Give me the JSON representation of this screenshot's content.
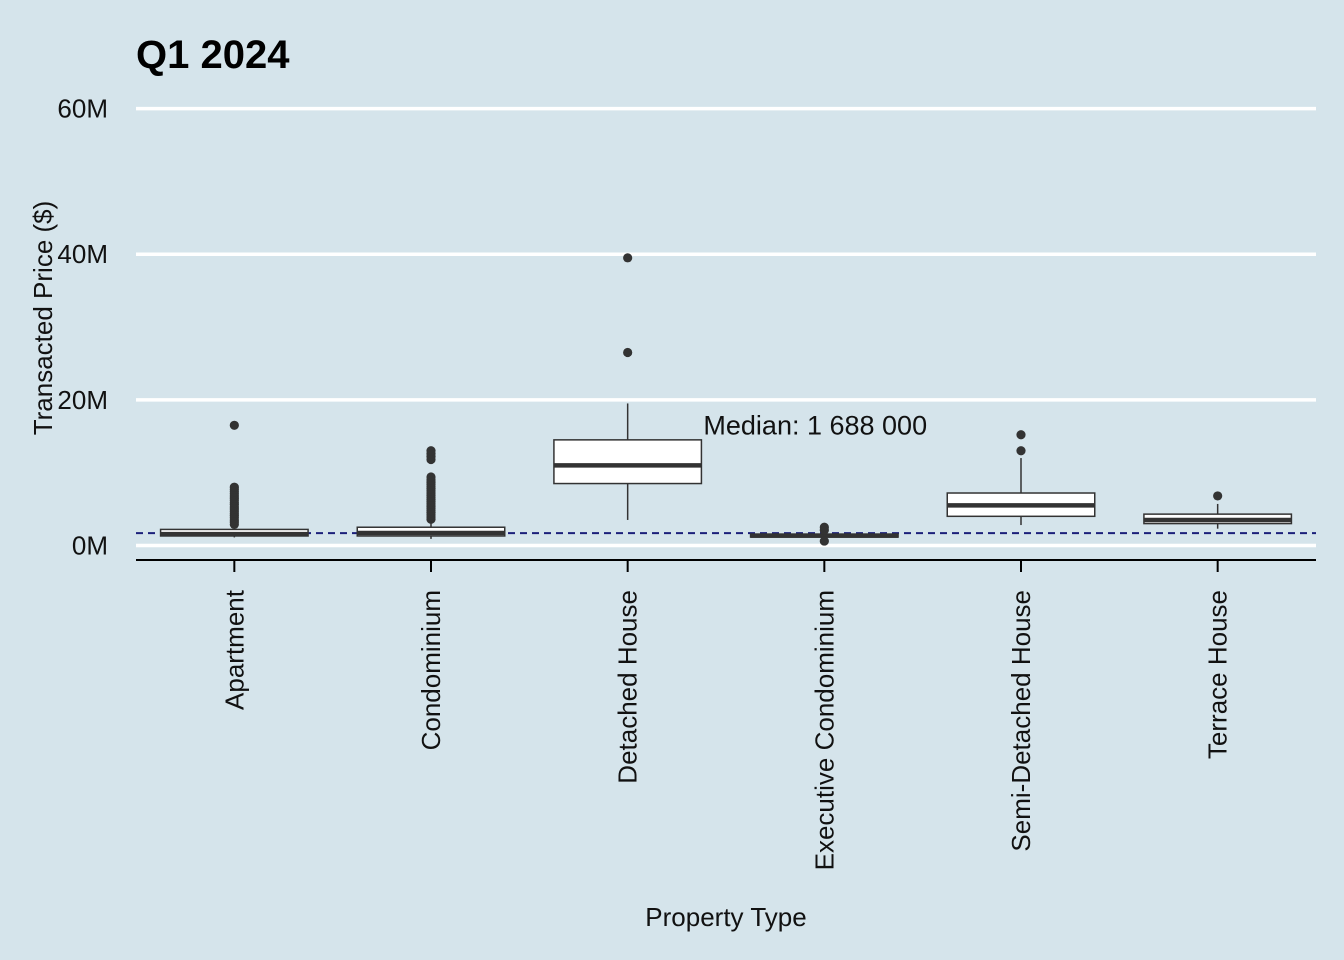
{
  "chart_data": {
    "type": "box",
    "title": "Q1 2024",
    "xlabel": "Property Type",
    "ylabel": "Transacted Price ($)",
    "ylim": [
      -2,
      62
    ],
    "yticks": [
      0,
      20,
      40,
      60
    ],
    "ytick_labels": [
      "0M",
      "20M",
      "40M",
      "60M"
    ],
    "y_unit": "millions of $",
    "grid": "horizontal major lines",
    "categories": [
      "Apartment",
      "Condominium",
      "Detached House",
      "Executive Condominium",
      "Semi-Detached House",
      "Terrace House"
    ],
    "boxes": [
      {
        "category": "Apartment",
        "whisker_low": 1.1,
        "q1": 1.3,
        "median": 1.55,
        "q3": 2.2,
        "whisker_high": 2.5,
        "outliers": [
          2.9,
          3.2,
          3.5,
          3.8,
          4.1,
          4.4,
          4.7,
          5.0,
          5.3,
          5.6,
          5.9,
          6.2,
          6.5,
          6.8,
          7.1,
          7.4,
          7.7,
          8.0,
          16.5
        ]
      },
      {
        "category": "Condominium",
        "whisker_low": 0.9,
        "q1": 1.3,
        "median": 1.7,
        "q3": 2.5,
        "whisker_high": 3.2,
        "outliers": [
          3.6,
          3.9,
          4.2,
          4.5,
          4.8,
          5.1,
          5.4,
          5.7,
          6.0,
          6.3,
          6.6,
          6.9,
          7.2,
          7.5,
          7.8,
          8.1,
          8.4,
          8.7,
          9.0,
          9.4,
          11.8,
          12.2,
          12.6,
          13.0
        ]
      },
      {
        "category": "Detached House",
        "whisker_low": 3.5,
        "q1": 8.5,
        "median": 11.0,
        "q3": 14.5,
        "whisker_high": 19.5,
        "outliers": [
          26.5,
          39.5
        ]
      },
      {
        "category": "Executive Condominium",
        "whisker_low": 1.0,
        "q1": 1.15,
        "median": 1.35,
        "q3": 1.55,
        "whisker_high": 1.8,
        "outliers": [
          0.6,
          2.1,
          2.5
        ]
      },
      {
        "category": "Semi-Detached House",
        "whisker_low": 2.8,
        "q1": 4.0,
        "median": 5.5,
        "q3": 7.2,
        "whisker_high": 12.0,
        "outliers": [
          13.0,
          15.2
        ]
      },
      {
        "category": "Terrace House",
        "whisker_low": 2.3,
        "q1": 3.0,
        "median": 3.5,
        "q3": 4.3,
        "whisker_high": 5.7,
        "outliers": [
          6.8
        ]
      }
    ],
    "reference_line": {
      "value": 1.688,
      "style": "dashed",
      "color": "#1b1f7a"
    },
    "annotation": {
      "text": "Median: 1 688 000",
      "anchor_category": "Detached House",
      "y": 16.5
    }
  },
  "colors": {
    "background": "#d5e4eb",
    "grid": "#ffffff",
    "box_fill": "#ffffff",
    "box_stroke": "#333333",
    "outlier": "#333333",
    "reference_line": "#1b1f7a"
  }
}
